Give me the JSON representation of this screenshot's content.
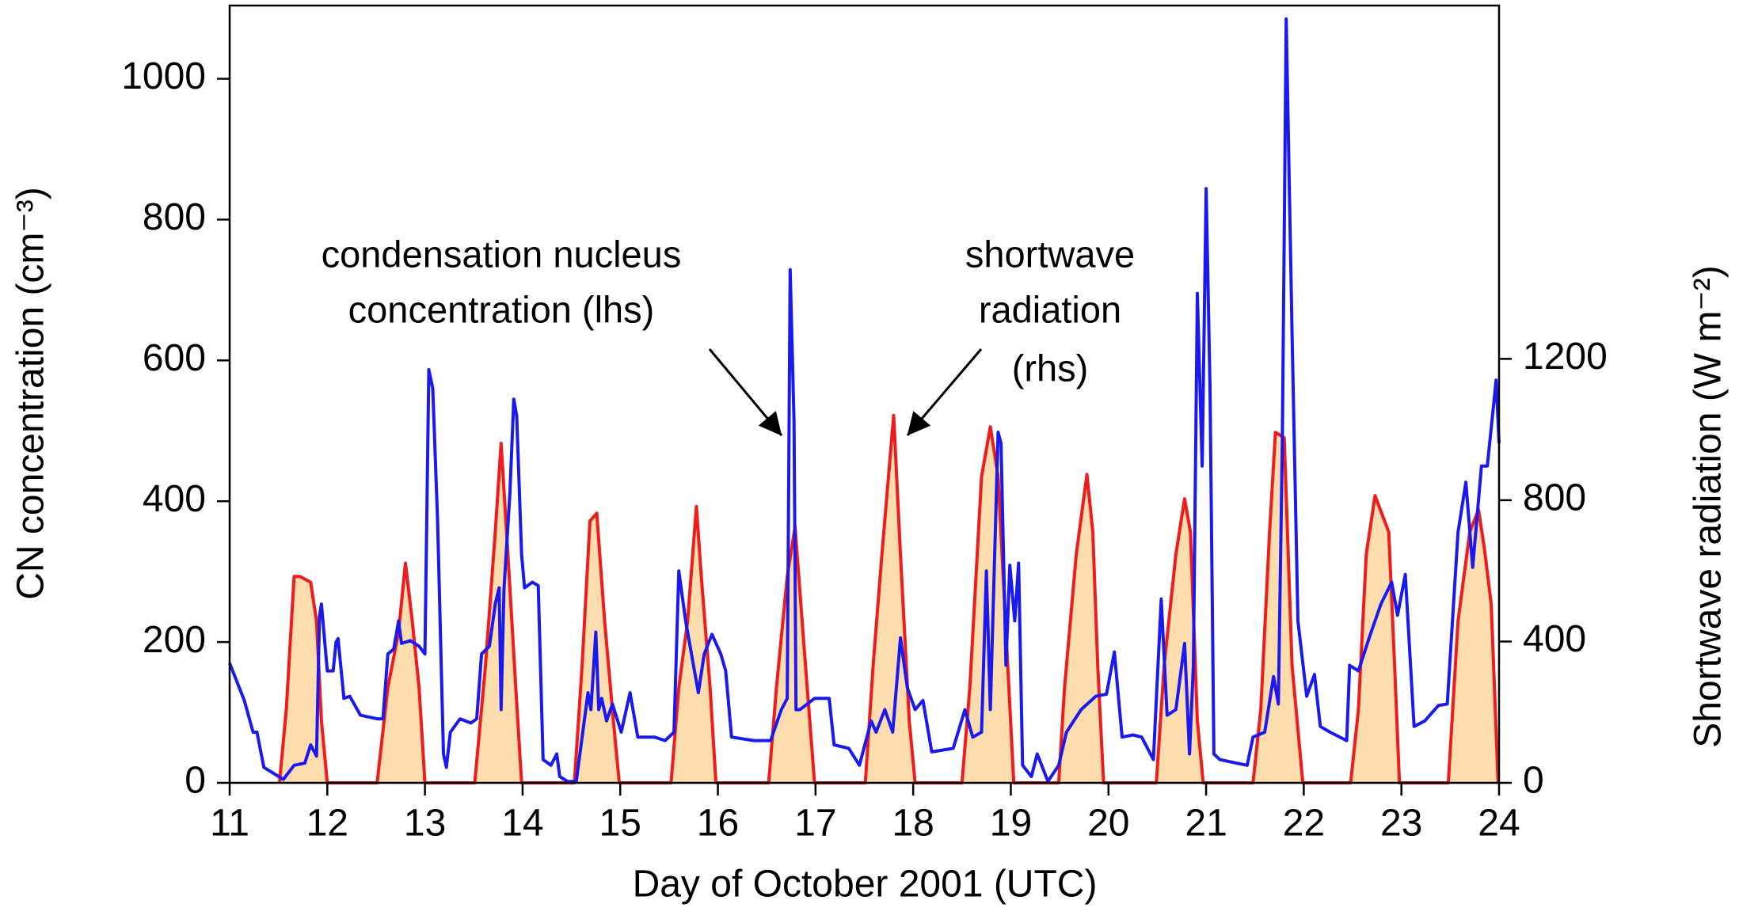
{
  "chart_data": {
    "type": "line",
    "xlabel": "Day of October 2001 (UTC)",
    "ylabel": "CN concentration (cm⁻³)",
    "y2label": "Shortwave radiation (W m⁻²)",
    "annotations": [
      "condensation nucleus",
      "concentration (lhs)",
      "shortwave",
      "radiation",
      "(rhs)"
    ],
    "xlim": [
      11,
      24
    ],
    "xticks": [
      11,
      12,
      13,
      14,
      15,
      16,
      17,
      18,
      19,
      20,
      21,
      22,
      23,
      24
    ],
    "ylim": [
      0,
      1104
    ],
    "yticks": [
      0,
      200,
      400,
      600,
      800,
      1000
    ],
    "y2lim": [
      0,
      2200
    ],
    "y2ticks": [
      0,
      400,
      800,
      1200
    ],
    "series": [
      {
        "name": "condensation nucleus concentration",
        "color": "#1a1af0",
        "x": [
          11.0,
          11.15,
          11.24,
          11.28,
          11.35,
          11.55,
          11.66,
          11.77,
          11.83,
          11.89,
          11.92,
          11.94,
          12.0,
          12.06,
          12.09,
          12.11,
          12.17,
          12.23,
          12.34,
          12.51,
          12.57,
          12.62,
          12.68,
          12.73,
          12.76,
          12.85,
          12.94,
          13.0,
          13.04,
          13.08,
          13.13,
          13.19,
          13.22,
          13.26,
          13.36,
          13.47,
          13.53,
          13.58,
          13.66,
          13.72,
          13.76,
          13.78,
          13.81,
          13.87,
          13.91,
          13.94,
          13.99,
          14.02,
          14.1,
          14.16,
          14.21,
          14.29,
          14.35,
          14.38,
          14.46,
          14.55,
          14.61,
          14.67,
          14.7,
          14.75,
          14.78,
          14.81,
          14.86,
          14.92,
          15.01,
          15.1,
          15.18,
          15.35,
          15.46,
          15.55,
          15.6,
          15.67,
          15.75,
          15.8,
          15.86,
          15.94,
          16.03,
          16.08,
          16.14,
          16.37,
          16.54,
          16.65,
          16.71,
          16.74,
          16.78,
          16.8,
          16.84,
          16.99,
          17.14,
          17.19,
          17.34,
          17.45,
          17.57,
          17.62,
          17.71,
          17.79,
          17.87,
          17.94,
          18.02,
          18.1,
          18.19,
          18.41,
          18.53,
          18.61,
          18.7,
          18.75,
          18.79,
          18.87,
          18.9,
          18.95,
          18.99,
          19.04,
          19.08,
          19.12,
          19.21,
          19.27,
          19.38,
          19.49,
          19.57,
          19.72,
          19.87,
          19.98,
          20.06,
          20.14,
          20.25,
          20.34,
          20.46,
          20.54,
          20.6,
          20.69,
          20.78,
          20.83,
          20.87,
          20.91,
          20.96,
          21.0,
          21.04,
          21.08,
          21.14,
          21.31,
          21.42,
          21.48,
          21.6,
          21.69,
          21.74,
          21.78,
          21.82,
          21.88,
          21.94,
          22.03,
          22.11,
          22.17,
          22.27,
          22.44,
          22.47,
          22.56,
          22.67,
          22.79,
          22.9,
          22.96,
          23.04,
          23.13,
          23.24,
          23.38,
          23.47,
          23.58,
          23.66,
          23.73,
          23.82,
          23.88,
          23.97,
          24.0
        ],
        "values": [
          170,
          117,
          72,
          72,
          22,
          5,
          25,
          28,
          54,
          38,
          236,
          254,
          159,
          159,
          200,
          205,
          120,
          123,
          96,
          91,
          91,
          183,
          190,
          230,
          198,
          202,
          194,
          183,
          587,
          560,
          372,
          41,
          22,
          72,
          91,
          85,
          91,
          183,
          194,
          254,
          277,
          104,
          277,
          411,
          545,
          521,
          324,
          277,
          285,
          280,
          33,
          25,
          41,
          9,
          2,
          2,
          65,
          128,
          104,
          214,
          104,
          120,
          88,
          112,
          72,
          128,
          65,
          65,
          60,
          72,
          301,
          230,
          167,
          128,
          183,
          211,
          183,
          159,
          65,
          60,
          60,
          104,
          120,
          729,
          513,
          104,
          104,
          120,
          120,
          54,
          49,
          25,
          88,
          72,
          104,
          72,
          206,
          135,
          104,
          117,
          44,
          49,
          104,
          65,
          72,
          301,
          104,
          498,
          482,
          167,
          309,
          230,
          312,
          25,
          9,
          41,
          2,
          25,
          72,
          104,
          123,
          126,
          186,
          65,
          68,
          65,
          33,
          261,
          96,
          104,
          198,
          41,
          167,
          695,
          450,
          844,
          561,
          41,
          33,
          28,
          25,
          65,
          72,
          151,
          112,
          482,
          1085,
          639,
          230,
          123,
          154,
          80,
          72,
          60,
          167,
          159,
          206,
          254,
          285,
          238,
          296,
          80,
          88,
          110,
          112,
          356,
          427,
          306,
          450,
          450,
          572,
          482
        ]
      },
      {
        "name": "shortwave radiation",
        "color": "#ee1c1c",
        "fill": "#fddcae",
        "axis": "y2",
        "x": [
          11.51,
          11.58,
          11.66,
          11.72,
          11.83,
          11.89,
          11.94,
          12.0,
          12.51,
          12.62,
          12.73,
          12.8,
          12.87,
          12.94,
          13.0,
          13.51,
          13.62,
          13.72,
          13.78,
          13.85,
          13.93,
          13.99,
          14.53,
          14.61,
          14.69,
          14.76,
          14.84,
          14.93,
          14.99,
          15.52,
          15.6,
          15.69,
          15.78,
          15.83,
          15.92,
          15.98,
          16.52,
          16.6,
          16.71,
          16.79,
          16.88,
          16.99,
          17.51,
          17.59,
          17.68,
          17.8,
          17.87,
          17.96,
          18.02,
          18.5,
          18.58,
          18.7,
          18.79,
          18.87,
          18.98,
          19.03,
          19.49,
          19.55,
          19.67,
          19.78,
          19.84,
          19.89,
          19.95,
          20.49,
          20.57,
          20.69,
          20.78,
          20.84,
          20.91,
          20.97,
          21.48,
          21.56,
          21.65,
          21.71,
          21.8,
          21.88,
          21.99,
          22.48,
          22.56,
          22.64,
          22.73,
          22.87,
          22.93,
          22.98,
          23.48,
          23.58,
          23.7,
          23.79,
          23.85,
          23.92,
          23.99
        ],
        "values": [
          0,
          207,
          584,
          584,
          568,
          458,
          176,
          0,
          0,
          270,
          427,
          622,
          458,
          270,
          0,
          0,
          333,
          710,
          961,
          647,
          270,
          0,
          0,
          333,
          741,
          763,
          458,
          176,
          0,
          0,
          270,
          458,
          782,
          584,
          270,
          0,
          0,
          270,
          584,
          725,
          396,
          0,
          0,
          333,
          647,
          1040,
          647,
          176,
          0,
          0,
          270,
          867,
          1008,
          867,
          270,
          0,
          0,
          270,
          647,
          873,
          710,
          333,
          0,
          0,
          333,
          647,
          804,
          710,
          176,
          0,
          0,
          207,
          710,
          992,
          977,
          333,
          0,
          0,
          207,
          647,
          813,
          710,
          333,
          0,
          0,
          458,
          710,
          773,
          663,
          506,
          0
        ]
      }
    ]
  }
}
